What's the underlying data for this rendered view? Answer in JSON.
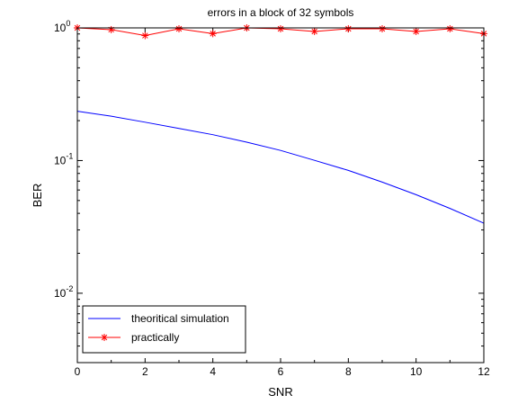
{
  "chart_data": {
    "type": "line",
    "title": "errors in a block of 32 symbols",
    "xlabel": "SNR",
    "ylabel": "BER",
    "xlim": [
      0,
      12
    ],
    "ylim": [
      0.003,
      1
    ],
    "yscale": "log",
    "grid": false,
    "legend_position": "bottom-left",
    "x_ticks": [
      "0",
      "2",
      "4",
      "6",
      "8",
      "10",
      "12"
    ],
    "y_ticks": [
      {
        "base": "10",
        "exp": "0"
      },
      {
        "base": "10",
        "exp": "-1"
      },
      {
        "base": "10",
        "exp": "-2"
      }
    ],
    "series": [
      {
        "name": "theoritical simulation",
        "color": "#0000ff",
        "marker": "none",
        "x": [
          0,
          1,
          2,
          3,
          4,
          5,
          6,
          7,
          8,
          9,
          10,
          11,
          12
        ],
        "y": [
          0.2355,
          0.2159,
          0.1946,
          0.1746,
          0.1567,
          0.1377,
          0.1192,
          0.1004,
          0.0843,
          0.0688,
          0.0553,
          0.0436,
          0.0337
        ]
      },
      {
        "name": "practically",
        "color": "#ff0000",
        "marker": "*",
        "x": [
          0,
          1,
          2,
          3,
          4,
          5,
          6,
          7,
          8,
          9,
          10,
          11,
          12
        ],
        "y": [
          1.0,
          0.97,
          0.875,
          0.985,
          0.905,
          1.0,
          0.985,
          0.94,
          0.985,
          0.985,
          0.94,
          0.985,
          0.905
        ]
      }
    ]
  }
}
